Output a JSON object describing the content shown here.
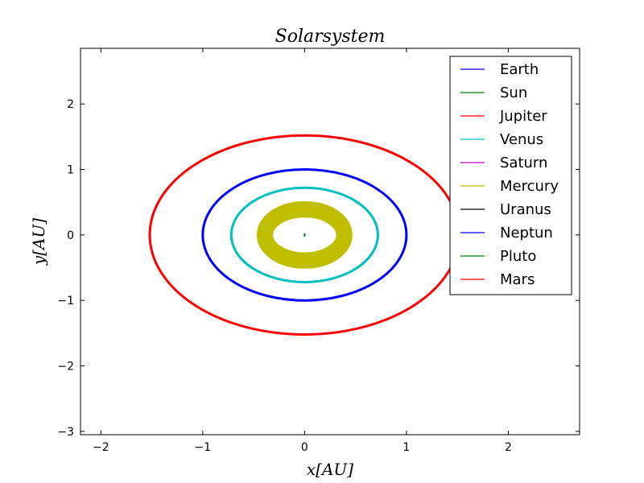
{
  "chart_data": {
    "type": "line",
    "title": "Solarsystem",
    "xlabel": "x[AU]",
    "ylabel": "y[AU]",
    "xlim": [
      -2.2,
      2.7
    ],
    "ylim": [
      -3.05,
      2.85
    ],
    "xticks": [
      -2,
      -1,
      0,
      1,
      2
    ],
    "yticks": [
      -3,
      -2,
      -1,
      0,
      1,
      2
    ],
    "xtick_labels": [
      "−2",
      "−1",
      "0",
      "1",
      "2"
    ],
    "ytick_labels": [
      "−3",
      "−2",
      "−1",
      "0",
      "1",
      "2"
    ],
    "grid": false,
    "legend_position": "top-right",
    "series": [
      {
        "name": "Earth",
        "color": "#0000ff",
        "orbit": {
          "rx": 1.0,
          "ry": 1.0,
          "width": 3
        }
      },
      {
        "name": "Sun",
        "color": "#008000",
        "orbit": {
          "rx": 0.0,
          "ry": 0.0,
          "width": 2
        }
      },
      {
        "name": "Jupiter",
        "color": "#ff0000",
        "orbit": null
      },
      {
        "name": "Venus",
        "color": "#00bfbf",
        "orbit": {
          "rx": 0.72,
          "ry": 0.72,
          "width": 3
        }
      },
      {
        "name": "Saturn",
        "color": "#bf00bf",
        "orbit": null
      },
      {
        "name": "Mercury",
        "color": "#bfbf00",
        "orbit": {
          "rx": 0.39,
          "ry": 0.39,
          "width": 9,
          "band": [
            0.31,
            0.47
          ]
        }
      },
      {
        "name": "Uranus",
        "color": "#000000",
        "orbit": null
      },
      {
        "name": "Neptun",
        "color": "#0000ff",
        "orbit": null
      },
      {
        "name": "Pluto",
        "color": "#008000",
        "orbit": null
      },
      {
        "name": "Mars",
        "color": "#ff0000",
        "orbit": {
          "rx": 1.52,
          "ry": 1.52,
          "width": 3
        }
      }
    ]
  }
}
